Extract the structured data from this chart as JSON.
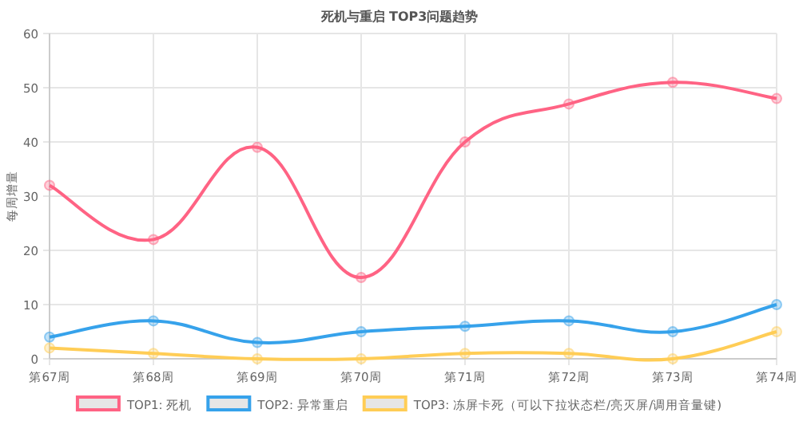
{
  "chart_data": {
    "type": "line",
    "title": "死机与重启 TOP3问题趋势",
    "ylabel": "每周增量",
    "categories": [
      "第67周",
      "第68周",
      "第69周",
      "第70周",
      "第71周",
      "第72周",
      "第73周",
      "第74周"
    ],
    "series": [
      {
        "name": "TOP1: 死机",
        "color": "#ff6384",
        "values": [
          32,
          22,
          39,
          15,
          40,
          47,
          51,
          48
        ]
      },
      {
        "name": "TOP2: 异常重启",
        "color": "#36a2eb",
        "values": [
          4,
          7,
          3,
          5,
          6,
          7,
          5,
          10
        ]
      },
      {
        "name": "TOP3: 冻屏卡死（可以下拉状态栏/亮灭屏/调用音量键)",
        "color": "#ffcd56",
        "values": [
          2,
          1,
          0,
          0,
          1,
          1,
          0,
          5
        ]
      }
    ],
    "ylim": [
      0,
      60
    ],
    "yticks": [
      0,
      10,
      20,
      30,
      40,
      50,
      60
    ],
    "grid": true,
    "legend": "bottom",
    "marker": "circle",
    "line_style": "solid"
  }
}
